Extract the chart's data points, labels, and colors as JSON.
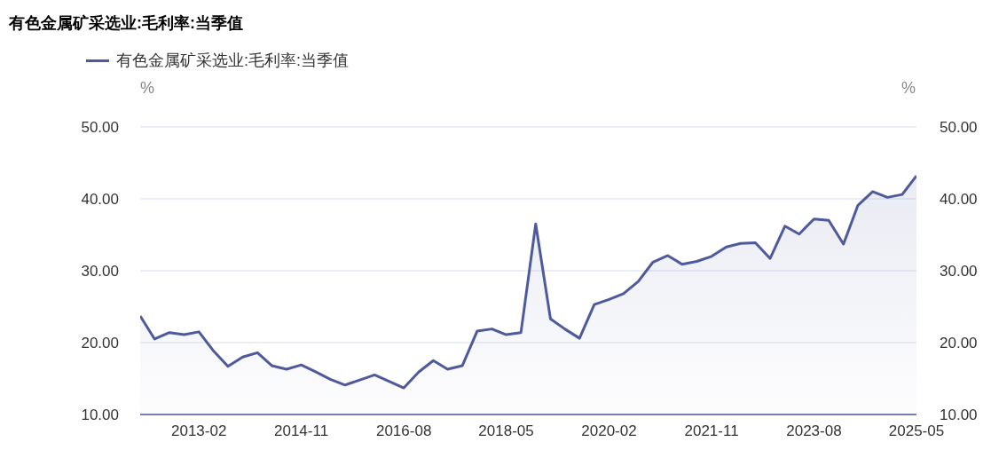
{
  "chart_data": {
    "type": "area",
    "title": "有色金属矿采选业:毛利率:当季值",
    "ylabel": "%",
    "y2label": "%",
    "legend": "top left",
    "grid": "y",
    "x": [
      "2012-02",
      "2012-05",
      "2012-08",
      "2012-11",
      "2013-02",
      "2013-05",
      "2013-08",
      "2013-11",
      "2014-02",
      "2014-05",
      "2014-08",
      "2014-11",
      "2015-02",
      "2015-05",
      "2015-08",
      "2015-11",
      "2016-02",
      "2016-05",
      "2016-08",
      "2016-11",
      "2017-02",
      "2017-05",
      "2017-08",
      "2017-11",
      "2018-02",
      "2018-05",
      "2018-08",
      "2018-11",
      "2019-02",
      "2019-05",
      "2019-08",
      "2019-11",
      "2020-02",
      "2020-05",
      "2020-08",
      "2020-11",
      "2021-02",
      "2021-05",
      "2021-08",
      "2021-11",
      "2022-02",
      "2022-05",
      "2022-08",
      "2022-11",
      "2023-02",
      "2023-05",
      "2023-08",
      "2023-11",
      "2024-02",
      "2024-05",
      "2024-08",
      "2024-11",
      "2025-02",
      "2025-05"
    ],
    "series": [
      {
        "name": "有色金属矿采选业:毛利率:当季值",
        "color": "#4e5a9c",
        "values": [
          23.7,
          20.5,
          21.4,
          21.1,
          21.5,
          18.9,
          16.7,
          18.0,
          18.6,
          16.8,
          16.3,
          16.9,
          15.9,
          14.9,
          14.1,
          14.8,
          15.5,
          14.6,
          13.7,
          15.9,
          17.5,
          16.3,
          16.8,
          21.6,
          21.9,
          21.1,
          21.4,
          36.5,
          23.3,
          21.9,
          20.6,
          25.3,
          26.0,
          26.8,
          28.5,
          31.2,
          32.1,
          30.9,
          31.3,
          32.0,
          33.3,
          33.8,
          33.9,
          31.7,
          36.2,
          35.1,
          37.2,
          37.0,
          33.7,
          39.1,
          41.0,
          40.2,
          40.6,
          43.2
        ]
      }
    ],
    "xlim": [
      "2012-02",
      "2025-05"
    ],
    "xticks": [
      "2013-02",
      "2014-11",
      "2016-08",
      "2018-05",
      "2020-02",
      "2021-11",
      "2023-08",
      "2025-05"
    ],
    "ylim": [
      10,
      50
    ],
    "yticks": [
      {
        "value": 10,
        "label": "10.00"
      },
      {
        "value": 20,
        "label": "20.00"
      },
      {
        "value": 30,
        "label": "30.00"
      },
      {
        "value": 40,
        "label": "40.00"
      },
      {
        "value": 50,
        "label": "50.00"
      }
    ],
    "y2lim": [
      10,
      50
    ],
    "y2ticks": [
      {
        "value": 10,
        "label": "10.00"
      },
      {
        "value": 20,
        "label": "20.00"
      },
      {
        "value": 30,
        "label": "30.00"
      },
      {
        "value": 40,
        "label": "40.00"
      },
      {
        "value": 50,
        "label": "50.00"
      }
    ]
  }
}
